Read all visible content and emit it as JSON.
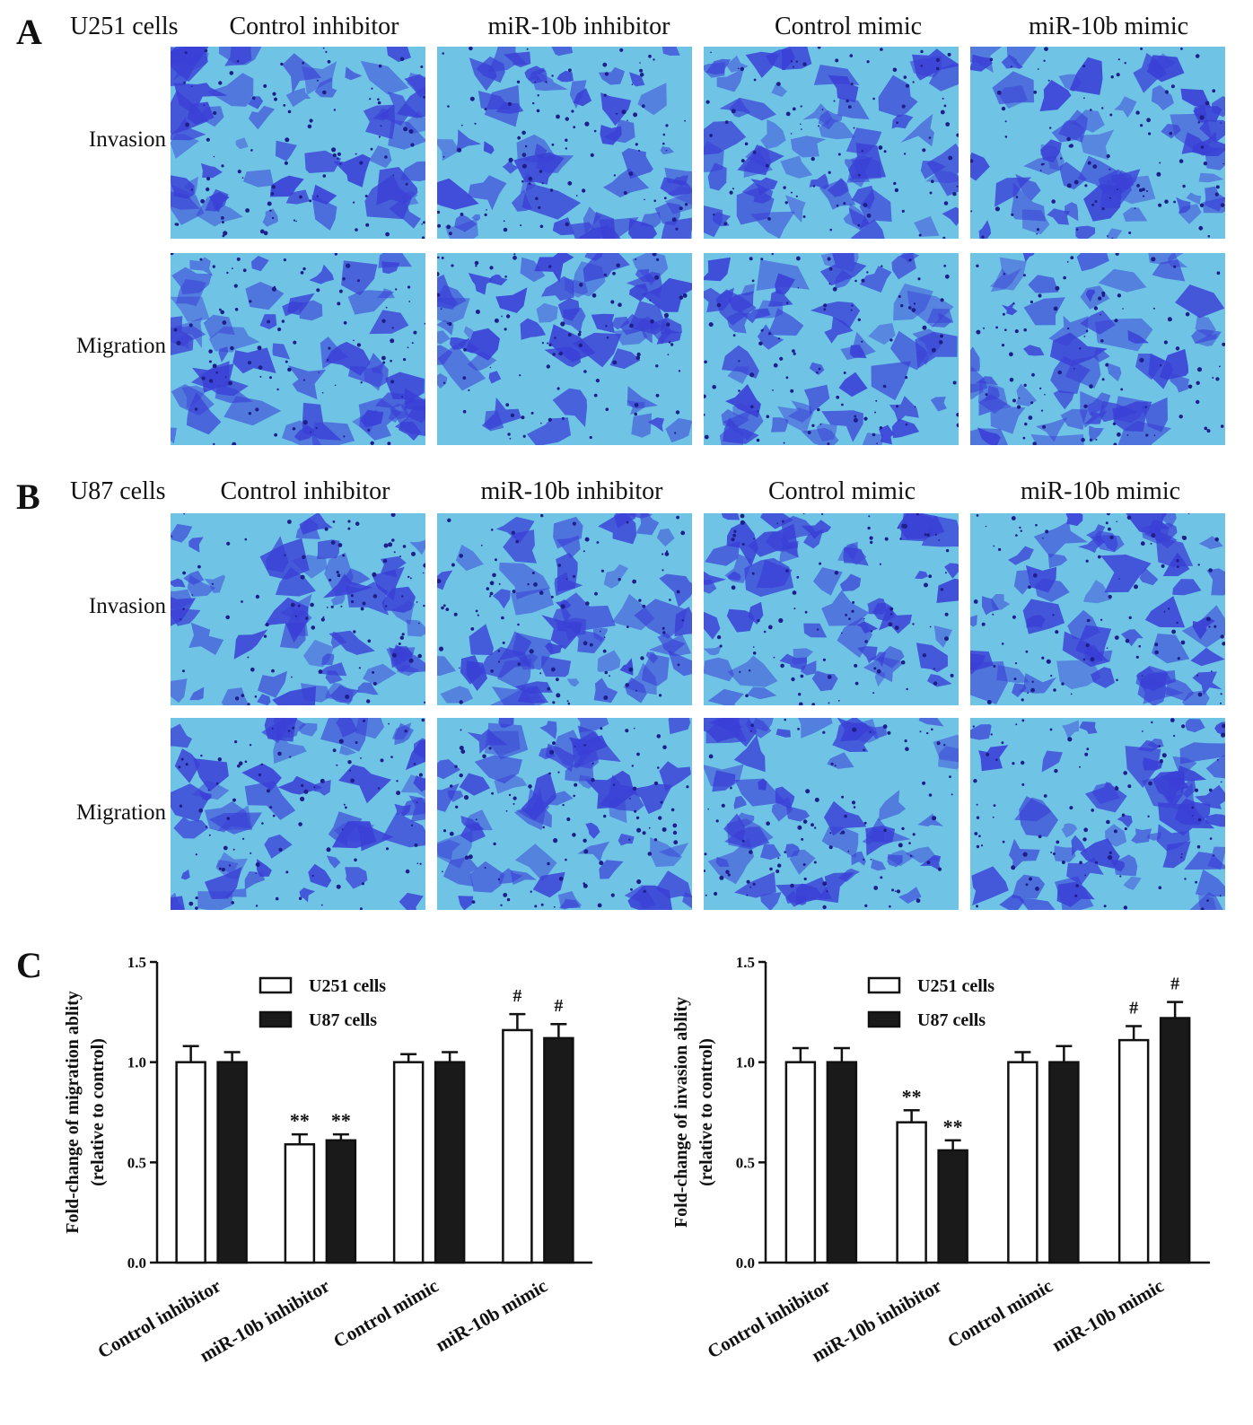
{
  "panels": [
    {
      "letter": "A",
      "cell_line": "U251 cells",
      "columns": [
        "Control inhibitor",
        "miR-10b inhibitor",
        "Control mimic",
        "miR-10b mimic"
      ],
      "rows": [
        "Invasion",
        "Migration"
      ]
    },
    {
      "letter": "B",
      "cell_line": "U87 cells",
      "columns": [
        "Control inhibitor",
        "miR-10b inhibitor",
        "Control mimic",
        "miR-10b mimic"
      ],
      "rows": [
        "Invasion",
        "Migration"
      ]
    }
  ],
  "panel_c_letter": "C",
  "colors": {
    "micro_bg": "#6fc4e6",
    "stain": "#3a3fd6",
    "dark_stain": "#1f1f8a",
    "bar_dark": "#1a1a1a"
  },
  "chart_data": [
    {
      "type": "bar",
      "ylabel_line1": "Fold-change of migration ablity",
      "ylabel_line2": "(relative to control)",
      "categories": [
        "Control inhibitor",
        "miR-10b inhibitor",
        "Control mimic",
        "miR-10b mimic"
      ],
      "series": [
        {
          "name": "U251 cells",
          "values": [
            1.0,
            0.59,
            1.0,
            1.16
          ],
          "errors": [
            0.08,
            0.05,
            0.04,
            0.08
          ],
          "fill": "white"
        },
        {
          "name": "U87 cells",
          "values": [
            1.0,
            0.61,
            1.0,
            1.12
          ],
          "errors": [
            0.05,
            0.03,
            0.05,
            0.07
          ],
          "fill": "black"
        }
      ],
      "annotations": [
        [
          "",
          "",
          "",
          "#"
        ],
        [
          "",
          "",
          "",
          "#"
        ]
      ],
      "annotations_u251": [
        "",
        "**",
        "",
        "#"
      ],
      "annotations_u87": [
        "",
        "**",
        "",
        "#"
      ],
      "ylim": [
        0,
        1.5
      ],
      "yticks": [
        "0.0",
        "0.5",
        "1.0",
        "1.5"
      ],
      "legend_position": "top-left"
    },
    {
      "type": "bar",
      "ylabel_line1": "Fold-change of invasion ablity",
      "ylabel_line2": "(relative to control)",
      "categories": [
        "Control inhibitor",
        "miR-10b inhibitor",
        "Control mimic",
        "miR-10b mimic"
      ],
      "series": [
        {
          "name": "U251 cells",
          "values": [
            1.0,
            0.7,
            1.0,
            1.11
          ],
          "errors": [
            0.07,
            0.06,
            0.05,
            0.07
          ],
          "fill": "white"
        },
        {
          "name": "U87 cells",
          "values": [
            1.0,
            0.56,
            1.0,
            1.22
          ],
          "errors": [
            0.07,
            0.05,
            0.08,
            0.08
          ],
          "fill": "black"
        }
      ],
      "annotations_u251": [
        "",
        "**",
        "",
        "#"
      ],
      "annotations_u87": [
        "",
        "**",
        "",
        "#"
      ],
      "ylim": [
        0,
        1.5
      ],
      "yticks": [
        "0.0",
        "0.5",
        "1.0",
        "1.5"
      ],
      "legend_position": "top-left"
    }
  ]
}
